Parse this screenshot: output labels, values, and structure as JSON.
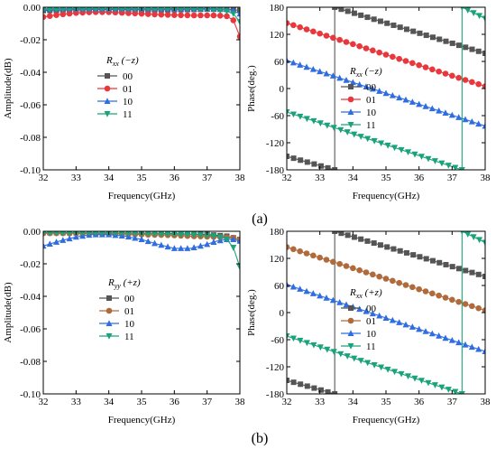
{
  "panel_labels": [
    "(a)",
    "(b)"
  ],
  "chart_data": [
    {
      "type": "line",
      "id": "a-amp",
      "xlabel": "Frequency(GHz)",
      "ylabel": "Amplitude(dB)",
      "xlim": [
        32,
        38
      ],
      "ylim": [
        -0.1,
        0.0
      ],
      "xticks": [
        "32",
        "33",
        "34",
        "35",
        "36",
        "37",
        "38"
      ],
      "yticks": [
        "0.00",
        "-0.02",
        "-0.04",
        "-0.06",
        "-0.08",
        "-0.10"
      ],
      "yticks_values": [
        0,
        -0.02,
        -0.04,
        -0.06,
        -0.08,
        -0.1
      ],
      "legend_title": {
        "main": "R",
        "sub": "xx",
        "suffix": " (−z)"
      },
      "series": [
        {
          "name": "00",
          "color": "#555555",
          "marker": "square",
          "x": [
            32,
            32.5,
            33,
            33.5,
            34,
            34.5,
            35,
            35.5,
            36,
            36.5,
            37,
            37.3,
            37.6,
            37.8,
            38
          ],
          "y": [
            -0.002,
            -0.0018,
            -0.0016,
            -0.0015,
            -0.0014,
            -0.0015,
            -0.0016,
            -0.0016,
            -0.0015,
            -0.0014,
            -0.0012,
            -0.0012,
            -0.0013,
            -0.0015,
            -0.002
          ]
        },
        {
          "name": "01",
          "color": "#e8383d",
          "marker": "circle",
          "x": [
            32,
            32.5,
            33,
            33.5,
            34,
            34.5,
            35,
            35.5,
            36,
            36.5,
            37,
            37.3,
            37.6,
            37.8,
            38
          ],
          "y": [
            -0.006,
            -0.0045,
            -0.0035,
            -0.003,
            -0.003,
            -0.0035,
            -0.004,
            -0.0045,
            -0.0048,
            -0.005,
            -0.005,
            -0.005,
            -0.0055,
            -0.008,
            -0.018
          ]
        },
        {
          "name": "10",
          "color": "#2f6de1",
          "marker": "triangle-up",
          "x": [
            32,
            32.5,
            33,
            33.5,
            34,
            34.5,
            35,
            35.5,
            36,
            36.5,
            37,
            37.3,
            37.6,
            37.8,
            38
          ],
          "y": [
            -0.001,
            -0.0009,
            -0.0008,
            -0.0008,
            -0.0008,
            -0.0008,
            -0.0009,
            -0.0009,
            -0.0008,
            -0.0008,
            -0.0008,
            -0.0009,
            -0.0012,
            -0.002,
            -0.004
          ]
        },
        {
          "name": "11",
          "color": "#1aa37a",
          "marker": "triangle-down",
          "x": [
            32,
            32.5,
            33,
            33.5,
            34,
            34.5,
            35,
            35.5,
            36,
            36.5,
            37,
            37.3,
            37.6,
            37.8,
            38
          ],
          "y": [
            -0.0015,
            -0.0012,
            -0.001,
            -0.001,
            -0.001,
            -0.001,
            -0.0011,
            -0.0011,
            -0.001,
            -0.001,
            -0.0012,
            -0.0016,
            -0.0025,
            -0.004,
            -0.009
          ]
        }
      ]
    },
    {
      "type": "line",
      "id": "a-phase",
      "xlabel": "Frequency(GHz)",
      "ylabel": "Phase(deg.)",
      "xlim": [
        32,
        38
      ],
      "ylim": [
        -180,
        180
      ],
      "xticks": [
        "32",
        "33",
        "34",
        "35",
        "36",
        "37",
        "38"
      ],
      "yticks": [
        "180",
        "120",
        "60",
        "0",
        "-60",
        "-120",
        "-180"
      ],
      "yticks_values": [
        180,
        120,
        60,
        0,
        -60,
        -120,
        -180
      ],
      "legend_title": {
        "main": "R",
        "sub": "xx",
        "suffix": " (−z)"
      },
      "series": [
        {
          "name": "00",
          "color": "#555555",
          "marker": "square",
          "segments": [
            {
              "x": [
                32,
                33.45
              ],
              "y": [
                -150,
                -180
              ]
            },
            {
              "x": [
                33.45,
                33.45
              ],
              "y": [
                -180,
                180
              ]
            },
            {
              "x": [
                33.45,
                38
              ],
              "y": [
                180,
                78
              ]
            }
          ]
        },
        {
          "name": "01",
          "color": "#e8383d",
          "marker": "circle",
          "segments": [
            {
              "x": [
                32,
                38
              ],
              "y": [
                145,
                5
              ]
            }
          ]
        },
        {
          "name": "10",
          "color": "#2f6de1",
          "marker": "triangle-up",
          "segments": [
            {
              "x": [
                32,
                38
              ],
              "y": [
                62,
                -83
              ]
            }
          ]
        },
        {
          "name": "11",
          "color": "#1aa37a",
          "marker": "triangle-down",
          "segments": [
            {
              "x": [
                32,
                37.3
              ],
              "y": [
                -52,
                -180
              ]
            },
            {
              "x": [
                37.3,
                37.3
              ],
              "y": [
                -180,
                180
              ]
            },
            {
              "x": [
                37.3,
                38
              ],
              "y": [
                180,
                155
              ]
            }
          ]
        }
      ]
    },
    {
      "type": "line",
      "id": "b-amp",
      "xlabel": "Frequency(GHz)",
      "ylabel": "Amplitude(dB)",
      "xlim": [
        32,
        38
      ],
      "ylim": [
        -0.1,
        0.0
      ],
      "xticks": [
        "32",
        "33",
        "34",
        "35",
        "36",
        "37",
        "38"
      ],
      "yticks": [
        "0.00",
        "-0.02",
        "-0.04",
        "-0.06",
        "-0.08",
        "-0.10"
      ],
      "yticks_values": [
        0,
        -0.02,
        -0.04,
        -0.06,
        -0.08,
        -0.1
      ],
      "legend_title": {
        "main": "R",
        "sub": "yy",
        "suffix": " (+z)"
      },
      "series": [
        {
          "name": "00",
          "color": "#555555",
          "marker": "square",
          "x": [
            32,
            32.5,
            33,
            33.5,
            34,
            34.5,
            35,
            35.5,
            36,
            36.5,
            37,
            37.3,
            37.6,
            37.8,
            38
          ],
          "y": [
            -0.0008,
            -0.0008,
            -0.0009,
            -0.001,
            -0.001,
            -0.0011,
            -0.0012,
            -0.0013,
            -0.0015,
            -0.0018,
            -0.002,
            -0.0025,
            -0.003,
            -0.004,
            -0.005
          ]
        },
        {
          "name": "01",
          "color": "#b06a3c",
          "marker": "circle",
          "x": [
            32,
            32.5,
            33,
            33.5,
            34,
            34.5,
            35,
            35.5,
            36,
            36.5,
            37,
            37.3,
            37.6,
            37.8,
            38
          ],
          "y": [
            -0.0012,
            -0.0012,
            -0.0013,
            -0.0014,
            -0.0015,
            -0.0017,
            -0.002,
            -0.0022,
            -0.0025,
            -0.003,
            -0.0033,
            -0.0035,
            -0.0038,
            -0.004,
            -0.005
          ]
        },
        {
          "name": "10",
          "color": "#2f6de1",
          "marker": "triangle-up",
          "x": [
            32,
            32.5,
            33,
            33.5,
            34,
            34.5,
            35,
            35.5,
            36,
            36.5,
            37,
            37.3,
            37.6,
            37.8,
            38
          ],
          "y": [
            -0.009,
            -0.006,
            -0.0035,
            -0.002,
            -0.002,
            -0.003,
            -0.005,
            -0.008,
            -0.0105,
            -0.0105,
            -0.008,
            -0.006,
            -0.005,
            -0.005,
            -0.006
          ]
        },
        {
          "name": "11",
          "color": "#1aa37a",
          "marker": "triangle-down",
          "x": [
            32,
            32.5,
            33,
            33.5,
            34,
            34.5,
            35,
            35.5,
            36,
            36.5,
            37,
            37.3,
            37.6,
            37.8,
            38
          ],
          "y": [
            -0.001,
            -0.001,
            -0.001,
            -0.001,
            -0.001,
            -0.0012,
            -0.0013,
            -0.0015,
            -0.0018,
            -0.002,
            -0.0025,
            -0.003,
            -0.005,
            -0.01,
            -0.022
          ]
        }
      ]
    },
    {
      "type": "line",
      "id": "b-phase",
      "xlabel": "Frequency(GHz)",
      "ylabel": "Phase(deg.)",
      "xlim": [
        32,
        38
      ],
      "ylim": [
        -180,
        180
      ],
      "xticks": [
        "32",
        "33",
        "34",
        "35",
        "36",
        "37",
        "38"
      ],
      "yticks": [
        "180",
        "120",
        "60",
        "0",
        "-60",
        "-120",
        "-180"
      ],
      "yticks_values": [
        180,
        120,
        60,
        0,
        -60,
        -120,
        -180
      ],
      "legend_title": {
        "main": "R",
        "sub": "xx",
        "suffix": " (+z)"
      },
      "series": [
        {
          "name": "00",
          "color": "#555555",
          "marker": "square",
          "segments": [
            {
              "x": [
                32,
                33.45
              ],
              "y": [
                -150,
                -180
              ]
            },
            {
              "x": [
                33.45,
                33.45
              ],
              "y": [
                -180,
                180
              ]
            },
            {
              "x": [
                33.45,
                38
              ],
              "y": [
                180,
                80
              ]
            }
          ]
        },
        {
          "name": "01",
          "color": "#b06a3c",
          "marker": "circle",
          "segments": [
            {
              "x": [
                32,
                38
              ],
              "y": [
                145,
                5
              ]
            }
          ]
        },
        {
          "name": "10",
          "color": "#2f6de1",
          "marker": "triangle-up",
          "segments": [
            {
              "x": [
                32,
                38
              ],
              "y": [
                62,
                -86
              ]
            }
          ]
        },
        {
          "name": "11",
          "color": "#1aa37a",
          "marker": "triangle-down",
          "segments": [
            {
              "x": [
                32,
                37.3
              ],
              "y": [
                -52,
                -180
              ]
            },
            {
              "x": [
                37.3,
                37.3
              ],
              "y": [
                -180,
                180
              ]
            },
            {
              "x": [
                37.3,
                38
              ],
              "y": [
                180,
                155
              ]
            }
          ]
        }
      ]
    }
  ]
}
